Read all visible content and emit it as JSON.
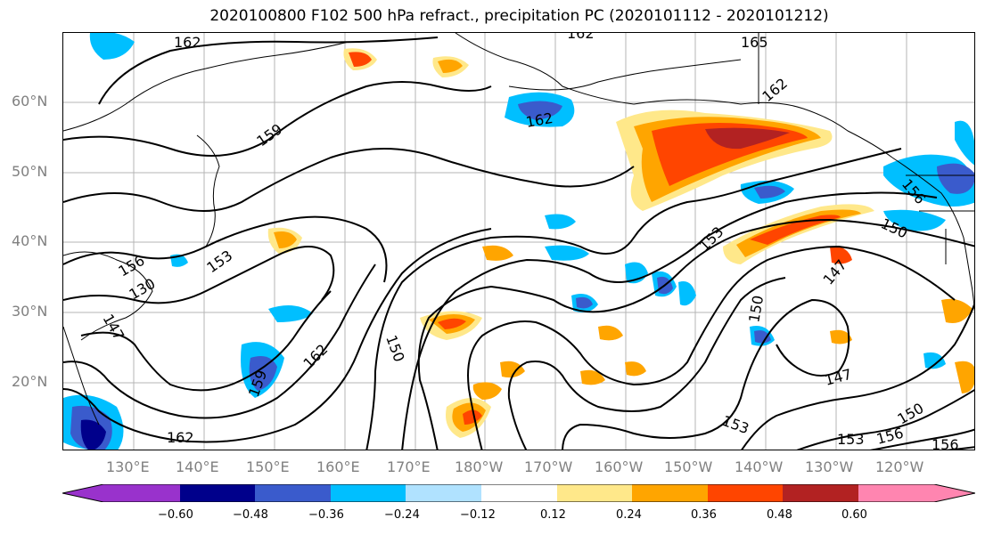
{
  "title": "2020100800 F102 500 hPa refract., precipitation PC (2020101112 - 2020101212)",
  "latitude_labels": [
    "60°N",
    "50°N",
    "40°N",
    "30°N",
    "20°N"
  ],
  "longitude_labels": [
    "130°E",
    "140°E",
    "150°E",
    "160°E",
    "170°E",
    "180°W",
    "170°W",
    "160°W",
    "150°W",
    "140°W",
    "130°W",
    "120°W"
  ],
  "contour_labels": [
    "162",
    "162",
    "165",
    "162",
    "159",
    "162",
    "156",
    "156",
    "153",
    "153",
    "130",
    "147",
    "150",
    "162",
    "150",
    "147",
    "153",
    "147",
    "150",
    "153",
    "156",
    "156",
    "159",
    "162",
    "150"
  ],
  "colorbar": {
    "tick_labels": [
      "−0.60",
      "−0.48",
      "−0.36",
      "−0.24",
      "−0.12",
      "0.12",
      "0.24",
      "0.36",
      "0.48",
      "0.60"
    ],
    "colors": [
      "#9932cc",
      "#00008b",
      "#3a5bcc",
      "#00bfff",
      "#b0e2ff",
      "#ffffff",
      "#ffe88a",
      "#ffa500",
      "#ff4500",
      "#b22222",
      "#ff85b0"
    ]
  },
  "map_colors": {
    "positive": [
      "#ffe88a",
      "#ffa500",
      "#ff4500",
      "#b22222"
    ],
    "negative": [
      "#b0e2ff",
      "#00bfff",
      "#3a5bcc",
      "#00008b"
    ]
  }
}
